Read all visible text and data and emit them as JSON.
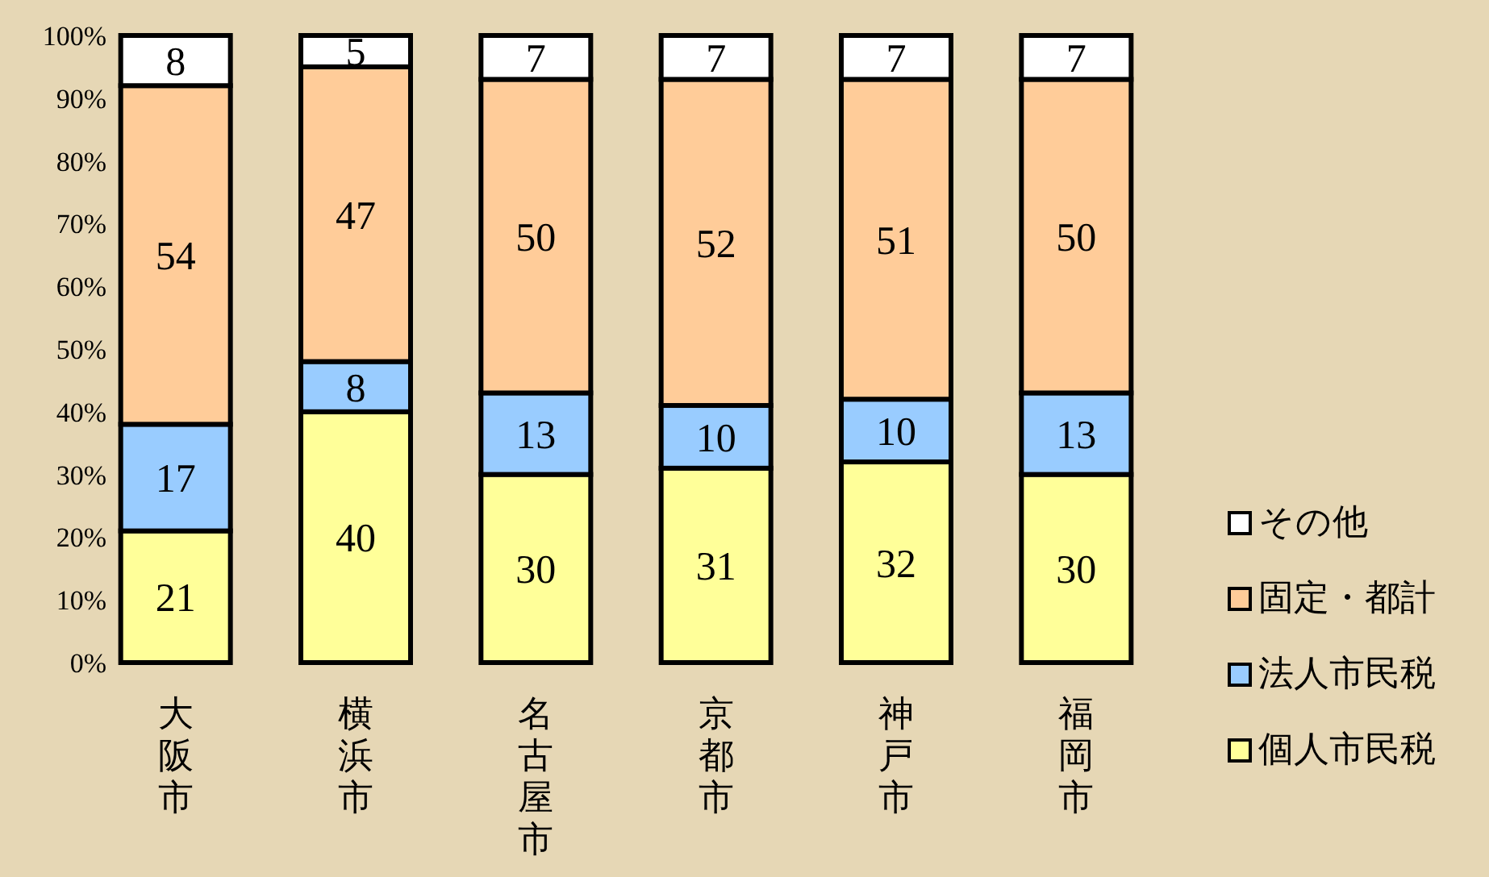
{
  "chart_data": {
    "type": "bar",
    "stacked": true,
    "data_labels": true,
    "legend": "bottom right",
    "categories": [
      "大阪市",
      "横浜市",
      "名古屋市",
      "京都市",
      "神戸市",
      "福岡市"
    ],
    "series": [
      {
        "name": "個人市民税",
        "color": "#ffff99",
        "values": [
          21,
          40,
          30,
          31,
          32,
          30
        ]
      },
      {
        "name": "法人市民税",
        "color": "#99ccff",
        "values": [
          17,
          8,
          13,
          10,
          10,
          13
        ]
      },
      {
        "name": "固定・都計",
        "color": "#ffcc99",
        "values": [
          54,
          47,
          50,
          52,
          51,
          50
        ]
      },
      {
        "name": "その他",
        "color": "#ffffff",
        "values": [
          8,
          5,
          7,
          7,
          7,
          7
        ]
      }
    ],
    "ylim": [
      0,
      100
    ],
    "yticks": [
      {
        "value": 0,
        "label": "0%"
      },
      {
        "value": 10,
        "label": "10%"
      },
      {
        "value": 20,
        "label": "20%"
      },
      {
        "value": 30,
        "label": "30%"
      },
      {
        "value": 40,
        "label": "40%"
      },
      {
        "value": 50,
        "label": "50%"
      },
      {
        "value": 60,
        "label": "60%"
      },
      {
        "value": 70,
        "label": "70%"
      },
      {
        "value": 80,
        "label": "80%"
      },
      {
        "value": 90,
        "label": "90%"
      },
      {
        "value": 100,
        "label": "100%"
      }
    ]
  }
}
